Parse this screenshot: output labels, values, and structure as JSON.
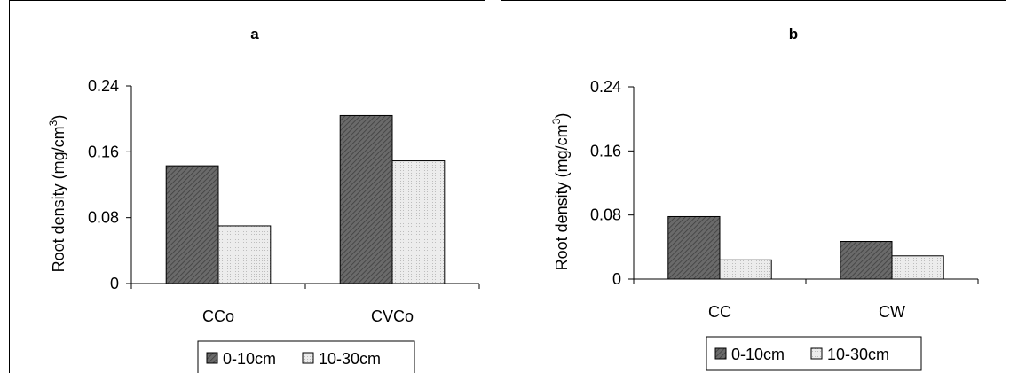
{
  "chart_data": [
    {
      "type": "bar",
      "title": "a",
      "ylabel_main": "Root density (mg/cm",
      "ylabel_sup": "3",
      "ylabel_end": ")",
      "ylim": [
        0,
        0.24
      ],
      "yticks": [
        "0",
        "0.08",
        "0.16",
        "0.24"
      ],
      "categories": [
        "CCo",
        "CVCo"
      ],
      "series": [
        {
          "name": "0-10cm",
          "values": [
            0.143,
            0.204
          ],
          "color": "#5f5f5f"
        },
        {
          "name": "10-30cm",
          "values": [
            0.07,
            0.149
          ],
          "color": "#e0e0e0"
        }
      ],
      "legend": "bottom"
    },
    {
      "type": "bar",
      "title": "b",
      "ylabel_main": "Root density (mg/cm",
      "ylabel_sup": "3",
      "ylabel_end": ")",
      "ylim": [
        0,
        0.24
      ],
      "yticks": [
        "0",
        "0.08",
        "0.16",
        "0.24"
      ],
      "categories": [
        "CC",
        "CW"
      ],
      "series": [
        {
          "name": "0-10cm",
          "values": [
            0.078,
            0.047
          ],
          "color": "#5f5f5f"
        },
        {
          "name": "10-30cm",
          "values": [
            0.024,
            0.029
          ],
          "color": "#e0e0e0"
        }
      ],
      "legend": "bottom"
    }
  ]
}
